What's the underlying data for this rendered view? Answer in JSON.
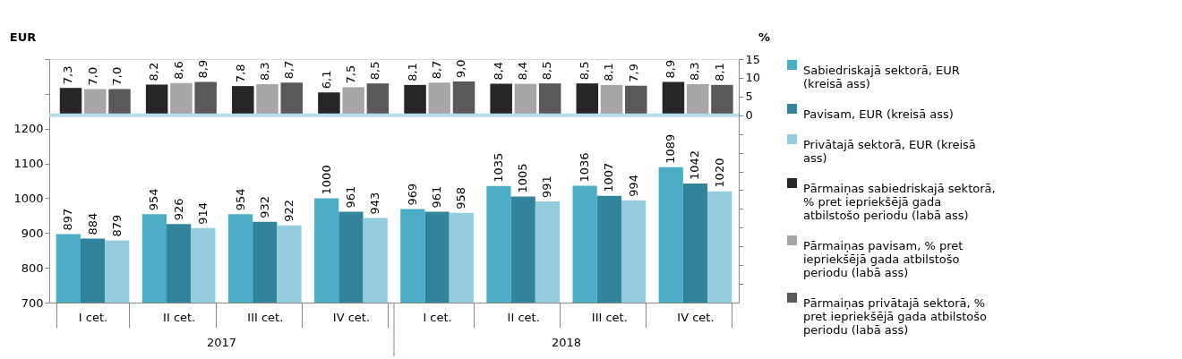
{
  "chart_data": {
    "type": "bar",
    "categories": [
      "I cet.",
      "II cet.",
      "III cet.",
      "IV cet.",
      "I cet.",
      "II cet.",
      "III cet.",
      "IV cet."
    ],
    "annotations": [
      "2017",
      "2018"
    ],
    "ylabel": "EUR",
    "y2label": "%",
    "ylim": [
      700,
      1400
    ],
    "yticks": [
      700,
      800,
      900,
      1000,
      1100,
      1200,
      {
        "value": 1300,
        "label": null
      },
      {
        "value": 1400,
        "label": null
      }
    ],
    "y2lim": [
      -50,
      15
    ],
    "y2ticks": [
      {
        "value": -45,
        "label": null
      },
      {
        "value": -40,
        "label": null
      },
      {
        "value": -35,
        "label": null
      },
      {
        "value": -30,
        "label": null
      },
      {
        "value": -25,
        "label": null
      },
      {
        "value": -20,
        "label": null
      },
      {
        "value": -15,
        "label": null
      },
      {
        "value": -10,
        "label": null
      },
      {
        "value": -5,
        "label": null
      },
      0,
      5,
      10,
      15
    ],
    "series": [
      {
        "name": "Sabiedriskajā sektorā, EUR (kreisā ass)",
        "color": "#4bacc6",
        "values": [
          897,
          954,
          954,
          1000,
          969,
          1035,
          1036,
          1089
        ],
        "value_labels": [
          "897",
          "954",
          "954",
          "1000",
          "969",
          "1035",
          "1036",
          "1089"
        ]
      },
      {
        "name": "Pavisam, EUR (kreisā ass)",
        "color": "#31849b",
        "values": [
          884,
          926,
          932,
          961,
          961,
          1005,
          1007,
          1042
        ],
        "value_labels": [
          "884",
          "926",
          "932",
          "961",
          "961",
          "1005",
          "1007",
          "1042"
        ]
      },
      {
        "name": "Privātajā sektorā, EUR (kreisā ass)",
        "color": "#93cddd",
        "values": [
          879,
          914,
          922,
          943,
          958,
          991,
          994,
          1020
        ],
        "value_labels": [
          "879",
          "914",
          "922",
          "943",
          "958",
          "991",
          "994",
          "1020"
        ]
      },
      {
        "name": "Pārmaiņas sabiedriskajā sektorā, % pret iepriekšējā gada atbilstošo periodu (labā ass)",
        "color": "#262626",
        "axis": "y2",
        "values": [
          7.3,
          8.2,
          7.8,
          6.1,
          8.1,
          8.4,
          8.5,
          8.9
        ],
        "value_labels": [
          "7,3",
          "8,2",
          "7,8",
          "6,1",
          "8,1",
          "8,4",
          "8,5",
          "8,9"
        ]
      },
      {
        "name": "Pārmaiņas pavisam, % pret iepriekšējā gada atbilstošo periodu (labā ass)",
        "color": "#a6a6a6",
        "axis": "y2",
        "values": [
          7.0,
          8.6,
          8.3,
          7.5,
          8.7,
          8.4,
          8.1,
          8.3
        ],
        "value_labels": [
          "7,0",
          "8,6",
          "8,3",
          "7,5",
          "8,7",
          "8,4",
          "8,1",
          "8,3"
        ]
      },
      {
        "name": "Pārmaiņas privātajā sektorā,  % pret iepriekšējā gada atbilstošo periodu (labā ass)",
        "color": "#595959",
        "axis": "y2",
        "values": [
          7.0,
          8.9,
          8.7,
          8.5,
          9.0,
          8.5,
          7.9,
          8.1
        ],
        "value_labels": [
          "7,0",
          "8,9",
          "8,7",
          "8,5",
          "9,0",
          "8,5",
          "7,9",
          "8,1"
        ]
      }
    ],
    "ref_lines": [
      {
        "axis": "y2",
        "value": 0,
        "label": null,
        "color": "#b7dde8"
      }
    ],
    "legend": "right",
    "grid": false
  }
}
